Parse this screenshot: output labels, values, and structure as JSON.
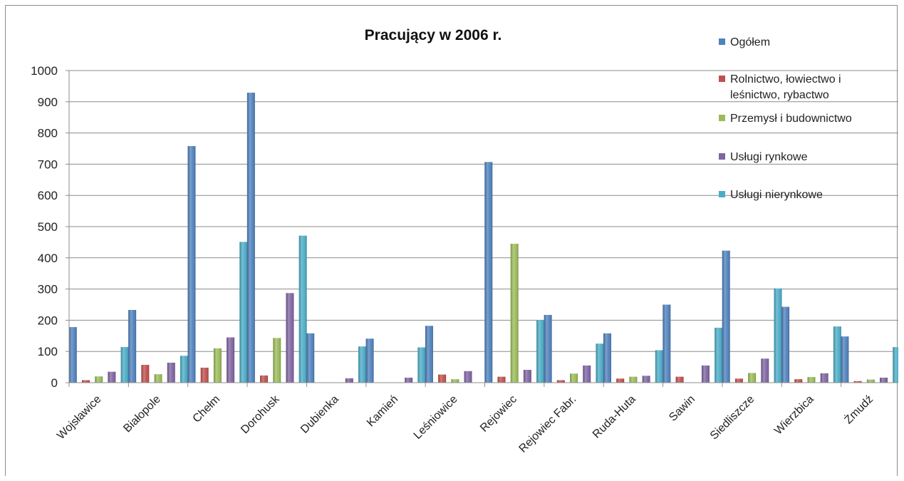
{
  "chart_data": {
    "type": "bar",
    "title": "Pracujący w 2006 r.",
    "xlabel": "",
    "ylabel": "",
    "ylim": [
      0,
      1000
    ],
    "yticks": [
      0,
      100,
      200,
      300,
      400,
      500,
      600,
      700,
      800,
      900,
      1000
    ],
    "grid": true,
    "legend_position": "right",
    "categories": [
      "Wojsławice",
      "Białopole",
      "Chełm",
      "Dorohusk",
      "Dubienka",
      "Kamień",
      "Leśniowice",
      "Rejowiec",
      "Rejowiec Fabr.",
      "Ruda-Huta",
      "Sawin",
      "Siedliszcze",
      "Wierzbica",
      "Żmudź"
    ],
    "series": [
      {
        "name": "Ogółem",
        "color": "#4f81bd",
        "values": [
          178,
          233,
          758,
          929,
          158,
          141,
          182,
          707,
          217,
          158,
          250,
          423,
          243,
          148
        ]
      },
      {
        "name": "Rolnictwo, łowiectwo i leśnictwo, rybactwo",
        "color": "#c0504d",
        "values": [
          8,
          57,
          48,
          23,
          0,
          0,
          26,
          19,
          8,
          13,
          19,
          13,
          11,
          5
        ]
      },
      {
        "name": "Przemysł i budownictwo",
        "color": "#9bbb59",
        "values": [
          20,
          27,
          110,
          143,
          0,
          0,
          11,
          445,
          29,
          19,
          0,
          31,
          18,
          10
        ]
      },
      {
        "name": "Usługi rynkowe",
        "color": "#8064a2",
        "values": [
          35,
          64,
          145,
          287,
          14,
          16,
          37,
          41,
          55,
          22,
          55,
          77,
          30,
          16
        ]
      },
      {
        "name": "Usługi nierynkowe",
        "color": "#4bacc6",
        "values": [
          114,
          86,
          451,
          471,
          116,
          113,
          0,
          200,
          125,
          104,
          176,
          302,
          180,
          114
        ]
      }
    ]
  }
}
